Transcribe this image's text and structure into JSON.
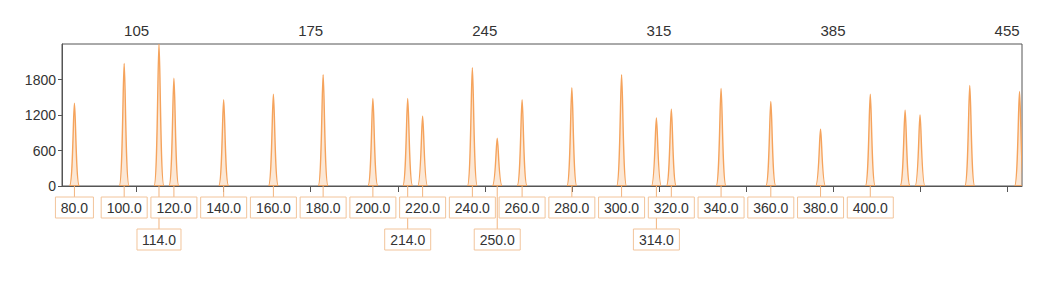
{
  "chart_data": {
    "type": "peaks",
    "x": [
      80,
      100,
      114,
      120,
      140,
      160,
      180,
      200,
      214,
      220,
      240,
      250,
      260,
      280,
      300,
      314,
      320,
      340,
      360,
      380,
      400,
      414,
      420,
      440,
      460
    ],
    "values": [
      1400,
      2070,
      2400,
      1820,
      1460,
      1550,
      1880,
      1480,
      1480,
      1180,
      2000,
      810,
      1460,
      1660,
      1880,
      1150,
      1300,
      1650,
      1430,
      960,
      1550,
      1280,
      1200,
      1700,
      1600
    ],
    "labels": [
      "80.0",
      "100.0",
      "114.0",
      "120.0",
      "140.0",
      "160.0",
      "180.0",
      "200.0",
      "214.0",
      "220.0",
      "240.0",
      "250.0",
      "260.0",
      "280.0",
      "300.0",
      "314.0",
      "320.0",
      "340.0",
      "360.0",
      "380.0",
      "400.0",
      null,
      null,
      null,
      null
    ],
    "color": "#f5a35c",
    "xlim": [
      75,
      461
    ],
    "xticks": [
      105,
      175,
      245,
      315,
      385,
      455
    ],
    "ylim": [
      0,
      2400
    ],
    "yticks": [
      0,
      600,
      1200,
      1800
    ],
    "grid": false
  }
}
